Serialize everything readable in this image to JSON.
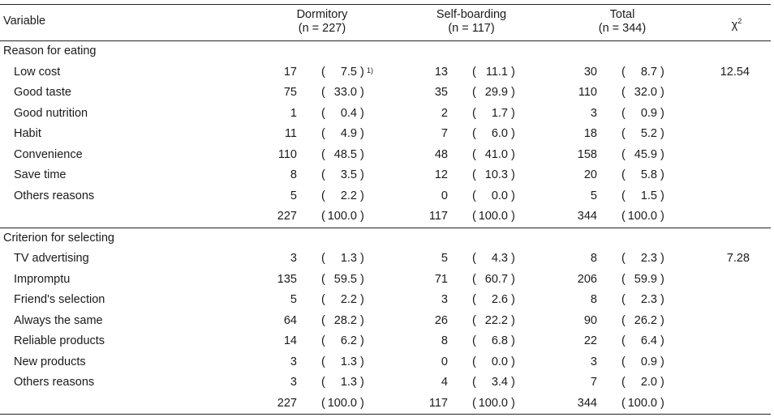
{
  "header": {
    "variable": "Variable",
    "col1_name": "Dormitory",
    "col1_n": "(n = 227)",
    "col2_name": "Self-boarding",
    "col2_n": "(n = 117)",
    "col3_name": "Total",
    "col3_n": "(n = 344)",
    "chi_symbol": "χ",
    "chi_sup": "2"
  },
  "sections": [
    {
      "title": "Reason for eating",
      "chi": "12.54",
      "rows": [
        {
          "label": "Low cost",
          "d_n": "17",
          "d_p": "7.5",
          "d_fn": "1)",
          "s_n": "13",
          "s_p": "11.1",
          "t_n": "30",
          "t_p": "8.7"
        },
        {
          "label": "Good taste",
          "d_n": "75",
          "d_p": "33.0",
          "s_n": "35",
          "s_p": "29.9",
          "t_n": "110",
          "t_p": "32.0"
        },
        {
          "label": "Good nutrition",
          "d_n": "1",
          "d_p": "0.4",
          "s_n": "2",
          "s_p": "1.7",
          "t_n": "3",
          "t_p": "0.9"
        },
        {
          "label": "Habit",
          "d_n": "11",
          "d_p": "4.9",
          "s_n": "7",
          "s_p": "6.0",
          "t_n": "18",
          "t_p": "5.2"
        },
        {
          "label": "Convenience",
          "d_n": "110",
          "d_p": "48.5",
          "s_n": "48",
          "s_p": "41.0",
          "t_n": "158",
          "t_p": "45.9"
        },
        {
          "label": "Save time",
          "d_n": "8",
          "d_p": "3.5",
          "s_n": "12",
          "s_p": "10.3",
          "t_n": "20",
          "t_p": "5.8"
        },
        {
          "label": "Others reasons",
          "d_n": "5",
          "d_p": "2.2",
          "s_n": "0",
          "s_p": "0.0",
          "t_n": "5",
          "t_p": "1.5"
        }
      ],
      "total": {
        "d_n": "227",
        "d_p": "100.0",
        "s_n": "117",
        "s_p": "100.0",
        "t_n": "344",
        "t_p": "100.0"
      }
    },
    {
      "title": "Criterion for selecting",
      "chi": "7.28",
      "rows": [
        {
          "label": "TV advertising",
          "d_n": "3",
          "d_p": "1.3",
          "s_n": "5",
          "s_p": "4.3",
          "t_n": "8",
          "t_p": "2.3"
        },
        {
          "label": "Impromptu",
          "d_n": "135",
          "d_p": "59.5",
          "s_n": "71",
          "s_p": "60.7",
          "t_n": "206",
          "t_p": "59.9"
        },
        {
          "label": "Friend's selection",
          "d_n": "5",
          "d_p": "2.2",
          "s_n": "3",
          "s_p": "2.6",
          "t_n": "8",
          "t_p": "2.3"
        },
        {
          "label": "Always the same",
          "d_n": "64",
          "d_p": "28.2",
          "s_n": "26",
          "s_p": "22.2",
          "t_n": "90",
          "t_p": "26.2"
        },
        {
          "label": "Reliable products",
          "d_n": "14",
          "d_p": "6.2",
          "s_n": "8",
          "s_p": "6.8",
          "t_n": "22",
          "t_p": "6.4"
        },
        {
          "label": "New products",
          "d_n": "3",
          "d_p": "1.3",
          "s_n": "0",
          "s_p": "0.0",
          "t_n": "3",
          "t_p": "0.9"
        },
        {
          "label": "Others reasons",
          "d_n": "3",
          "d_p": "1.3",
          "s_n": "4",
          "s_p": "3.4",
          "t_n": "7",
          "t_p": "2.0"
        }
      ],
      "total": {
        "d_n": "227",
        "d_p": "100.0",
        "s_n": "117",
        "s_p": "100.0",
        "t_n": "344",
        "t_p": "100.0"
      }
    }
  ]
}
